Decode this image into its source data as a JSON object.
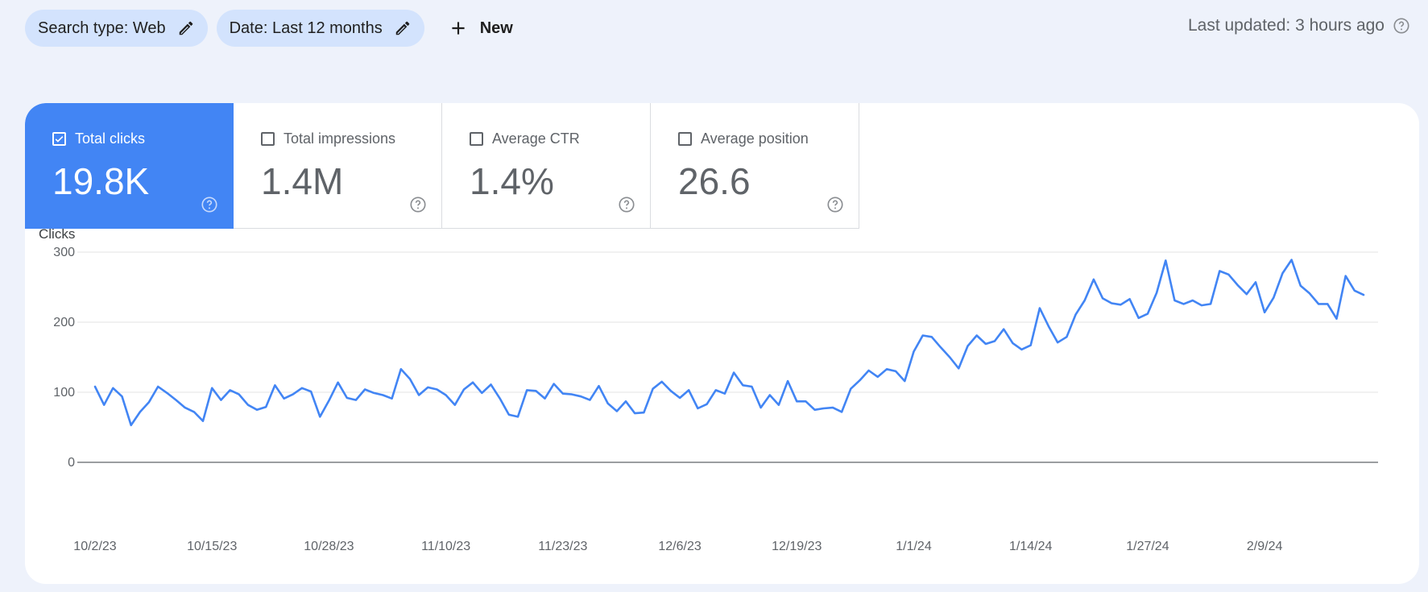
{
  "filters": {
    "search_type": "Search type: Web",
    "date": "Date: Last 12 months",
    "new_label": "New"
  },
  "last_updated": "Last updated: 3 hours ago",
  "metrics": [
    {
      "label": "Total clicks",
      "value": "19.8K",
      "checked": true
    },
    {
      "label": "Total impressions",
      "value": "1.4M",
      "checked": false
    },
    {
      "label": "Average CTR",
      "value": "1.4%",
      "checked": false
    },
    {
      "label": "Average position",
      "value": "26.6",
      "checked": false
    }
  ],
  "colors": {
    "accent": "#4285f4",
    "chip": "#d3e3fd",
    "background": "#eef2fb"
  },
  "chart_data": {
    "type": "line",
    "ylabel": "Clicks",
    "ylim": [
      0,
      300
    ],
    "yticks": [
      0,
      100,
      200,
      300
    ],
    "grid": true,
    "x_tick_labels": [
      "10/2/23",
      "10/15/23",
      "10/28/23",
      "11/10/23",
      "11/23/23",
      "12/6/23",
      "12/19/23",
      "1/1/24",
      "1/14/24",
      "1/27/24",
      "2/9/24"
    ],
    "x_start": "10/2/23",
    "x_end": "2/20/24",
    "series": [
      {
        "color": "#4285f4",
        "values": [
          108,
          82,
          106,
          94,
          53,
          72,
          86,
          108,
          99,
          89,
          78,
          72,
          59,
          106,
          89,
          103,
          97,
          82,
          75,
          79,
          110,
          91,
          97,
          106,
          101,
          65,
          88,
          114,
          92,
          89,
          104,
          99,
          96,
          91,
          133,
          119,
          96,
          107,
          104,
          96,
          82,
          104,
          114,
          99,
          111,
          91,
          68,
          65,
          103,
          102,
          91,
          112,
          98,
          97,
          94,
          89,
          109,
          84,
          73,
          87,
          70,
          71,
          105,
          115,
          102,
          92,
          103,
          77,
          83,
          103,
          98,
          128,
          110,
          108,
          78,
          96,
          82,
          116,
          87,
          87,
          75,
          77,
          78,
          72,
          105,
          117,
          131,
          122,
          133,
          130,
          116,
          158,
          181,
          179,
          164,
          150,
          134,
          166,
          181,
          169,
          173,
          190,
          170,
          161,
          167,
          220,
          194,
          171,
          179,
          211,
          231,
          261,
          234,
          227,
          225,
          233,
          206,
          212,
          242,
          288,
          231,
          226,
          231,
          224,
          226,
          273,
          268,
          253,
          240,
          257,
          214,
          235,
          270,
          289,
          252,
          241,
          226,
          226,
          205,
          266,
          245,
          239
        ]
      }
    ]
  }
}
